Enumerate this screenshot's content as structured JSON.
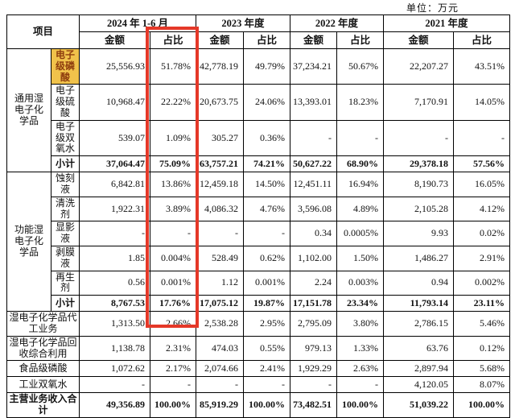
{
  "unit_label": "单位：万元",
  "header": {
    "item": "项目",
    "periods": [
      "2024 年 1-6 月",
      "2023 年度",
      "2022 年度",
      "2021 年度"
    ],
    "amount": "金额",
    "ratio": "占比"
  },
  "groups": {
    "general": "通用湿电子化学品",
    "functional": "功能湿电子化学品"
  },
  "rows": [
    {
      "label": "电子级磷酸",
      "cells": [
        "25,556.93",
        "51.78%",
        "42,778.19",
        "49.79%",
        "37,234.21",
        "50.67%",
        "22,207.27",
        "43.51%"
      ]
    },
    {
      "label": "电子级硫酸",
      "cells": [
        "10,968.47",
        "22.22%",
        "20,673.75",
        "24.06%",
        "13,393.01",
        "18.23%",
        "7,170.91",
        "14.05%"
      ]
    },
    {
      "label": "电子级双氧水",
      "cells": [
        "539.07",
        "1.09%",
        "305.27",
        "0.36%",
        "-",
        "-",
        "-",
        "-"
      ]
    },
    {
      "label": "小计",
      "cells": [
        "37,064.47",
        "75.09%",
        "63,757.21",
        "74.21%",
        "50,627.22",
        "68.90%",
        "29,378.18",
        "57.56%"
      ]
    },
    {
      "label": "蚀刻液",
      "cells": [
        "6,842.81",
        "13.86%",
        "12,459.18",
        "14.50%",
        "12,451.11",
        "16.94%",
        "8,190.73",
        "16.05%"
      ]
    },
    {
      "label": "清洗剂",
      "cells": [
        "1,922.31",
        "3.89%",
        "4,086.32",
        "4.76%",
        "3,596.08",
        "4.89%",
        "2,105.28",
        "4.12%"
      ]
    },
    {
      "label": "显影液",
      "cells": [
        "-",
        "-",
        "-",
        "-",
        "0.34",
        "0.0005%",
        "9.93",
        "0.02%"
      ]
    },
    {
      "label": "剥膜液",
      "cells": [
        "1.85",
        "0.004%",
        "528.49",
        "0.62%",
        "1,102.00",
        "1.50%",
        "1,486.27",
        "2.91%"
      ]
    },
    {
      "label": "再生剂",
      "cells": [
        "0.56",
        "0.001%",
        "1.12",
        "0.001%",
        "2.24",
        "0.003%",
        "0.94",
        "0.002%"
      ]
    },
    {
      "label": "小计",
      "cells": [
        "8,767.53",
        "17.76%",
        "17,075.12",
        "19.87%",
        "17,151.78",
        "23.34%",
        "11,793.14",
        "23.11%"
      ]
    },
    {
      "label": "湿电子化学品代工业务",
      "cells": [
        "1,313.50",
        "2.66%",
        "2,538.28",
        "2.95%",
        "2,795.09",
        "3.80%",
        "2,786.15",
        "5.46%"
      ]
    },
    {
      "label": "湿电子化学品回收综合利用",
      "cells": [
        "1,138.78",
        "2.31%",
        "474.03",
        "0.55%",
        "979.13",
        "1.33%",
        "63.76",
        "0.12%"
      ]
    },
    {
      "label": "食品级磷酸",
      "cells": [
        "1,072.62",
        "2.17%",
        "2,074.66",
        "2.41%",
        "1,929.29",
        "2.63%",
        "2,897.94",
        "5.68%"
      ]
    },
    {
      "label": "工业双氧水",
      "cells": [
        "-",
        "-",
        "-",
        "-",
        "-",
        "-",
        "4,120.05",
        "8.07%"
      ]
    },
    {
      "label": "主营业务收入合计",
      "cells": [
        "49,356.89",
        "100.00%",
        "85,919.29",
        "100.00%",
        "73,482.51",
        "100.00%",
        "51,039.22",
        "100.00%"
      ]
    }
  ],
  "colors": {
    "highlight_bg": "#F0C24B",
    "highlight_text": "#8F3E0E",
    "annotation_red": "#E53828"
  }
}
